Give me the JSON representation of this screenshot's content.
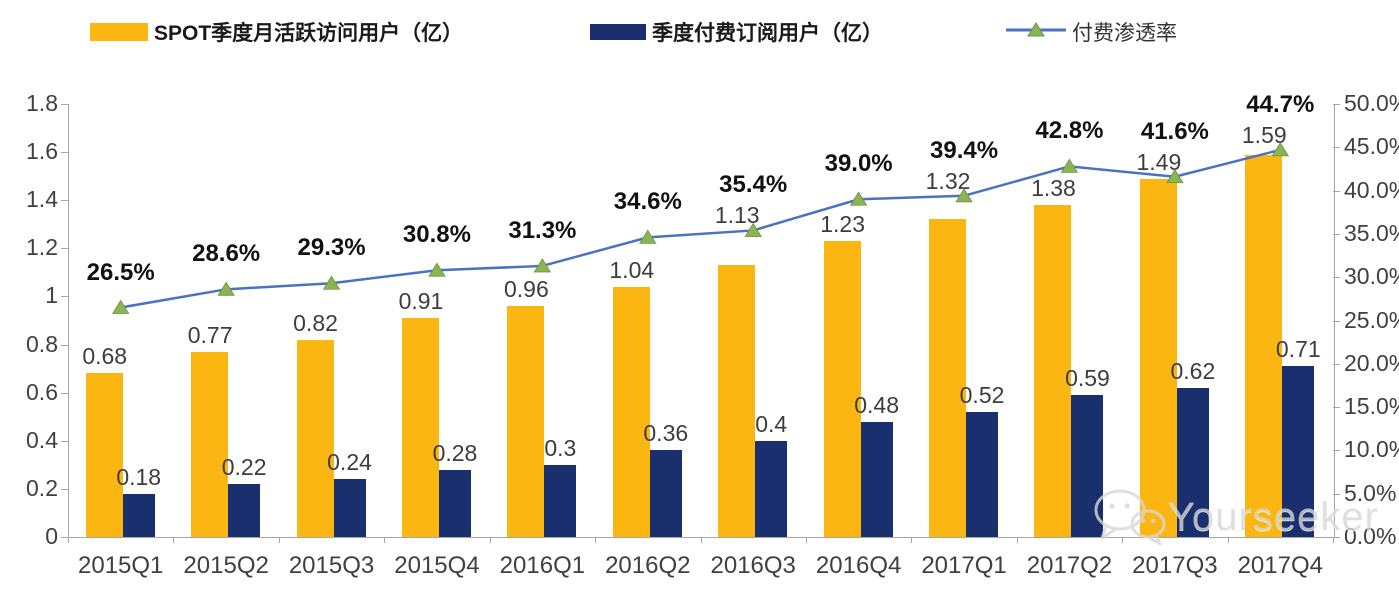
{
  "watermark": {
    "text": "Yourseeker",
    "icon": "wechat-icon"
  },
  "chart_data": {
    "type": "bar",
    "title": "",
    "categories": [
      "2015Q1",
      "2015Q2",
      "2015Q3",
      "2015Q4",
      "2016Q1",
      "2016Q2",
      "2016Q3",
      "2016Q4",
      "2017Q1",
      "2017Q2",
      "2017Q3",
      "2017Q4"
    ],
    "series": [
      {
        "name": "SPOT季度月活跃访问用户（亿）",
        "type": "bar",
        "color": "#FBB612",
        "axis": "left",
        "values": [
          0.68,
          0.77,
          0.82,
          0.91,
          0.96,
          1.04,
          1.13,
          1.23,
          1.32,
          1.38,
          1.49,
          1.59
        ],
        "labels": [
          "0.68",
          "0.77",
          "0.82",
          "0.91",
          "0.96",
          "1.04",
          "1.13",
          "1.23",
          "1.32",
          "1.38",
          "1.49",
          "1.59"
        ]
      },
      {
        "name": "季度付费订阅用户（亿）",
        "type": "bar",
        "color": "#1A2F6E",
        "axis": "left",
        "values": [
          0.18,
          0.22,
          0.24,
          0.28,
          0.3,
          0.36,
          0.4,
          0.48,
          0.52,
          0.59,
          0.62,
          0.71
        ],
        "labels": [
          "0.18",
          "0.22",
          "0.24",
          "0.28",
          "0.3",
          "0.36",
          "0.4",
          "0.48",
          "0.52",
          "0.59",
          "0.62",
          "0.71"
        ]
      },
      {
        "name": "付费渗透率",
        "type": "line",
        "color": "#4A72C0",
        "marker_color": "#8CB455",
        "axis": "right",
        "values": [
          26.5,
          28.6,
          29.3,
          30.8,
          31.3,
          34.6,
          35.4,
          39.0,
          39.4,
          42.8,
          41.6,
          44.7
        ],
        "labels": [
          "26.5%",
          "28.6%",
          "29.3%",
          "30.8%",
          "31.3%",
          "34.6%",
          "35.4%",
          "39.0%",
          "39.4%",
          "42.8%",
          "41.6%",
          "44.7%"
        ]
      }
    ],
    "left_axis": {
      "ticks": [
        "0",
        "0.2",
        "0.4",
        "0.6",
        "0.8",
        "1",
        "1.2",
        "1.4",
        "1.6",
        "1.8"
      ],
      "min": 0,
      "max": 1.8
    },
    "right_axis": {
      "ticks": [
        "0.0%",
        "5.0%",
        "10.0%",
        "15.0%",
        "20.0%",
        "25.0%",
        "30.0%",
        "35.0%",
        "40.0%",
        "45.0%",
        "50.0%"
      ],
      "min": 0,
      "max": 50
    },
    "grid": false,
    "legend_position": "top"
  }
}
